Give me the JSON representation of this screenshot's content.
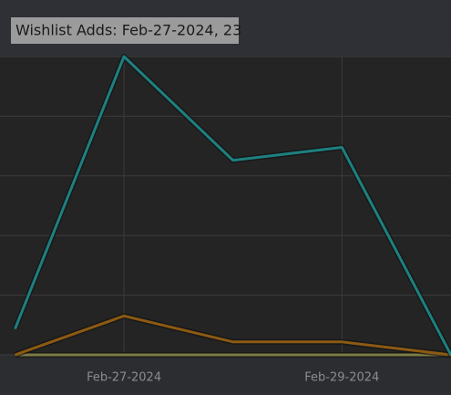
{
  "chart_data": {
    "type": "line",
    "tooltip": "Wishlist Adds: Feb-27-2024, 23",
    "categories": [
      null,
      "Feb-27-2024",
      null,
      "Feb-29-2024",
      null
    ],
    "series": [
      {
        "color": "#1d8080",
        "values": [
          2,
          23,
          15,
          16,
          0
        ]
      },
      {
        "color": "#8c5a12",
        "values": [
          0,
          3,
          1,
          1,
          0
        ]
      },
      {
        "color": "#7d7c45",
        "values": [
          0,
          0,
          0,
          0,
          0
        ]
      }
    ],
    "ylim": [
      0,
      23
    ],
    "yticks": [
      0,
      4.6,
      9.2,
      13.8,
      18.4,
      23
    ],
    "grid": true
  }
}
